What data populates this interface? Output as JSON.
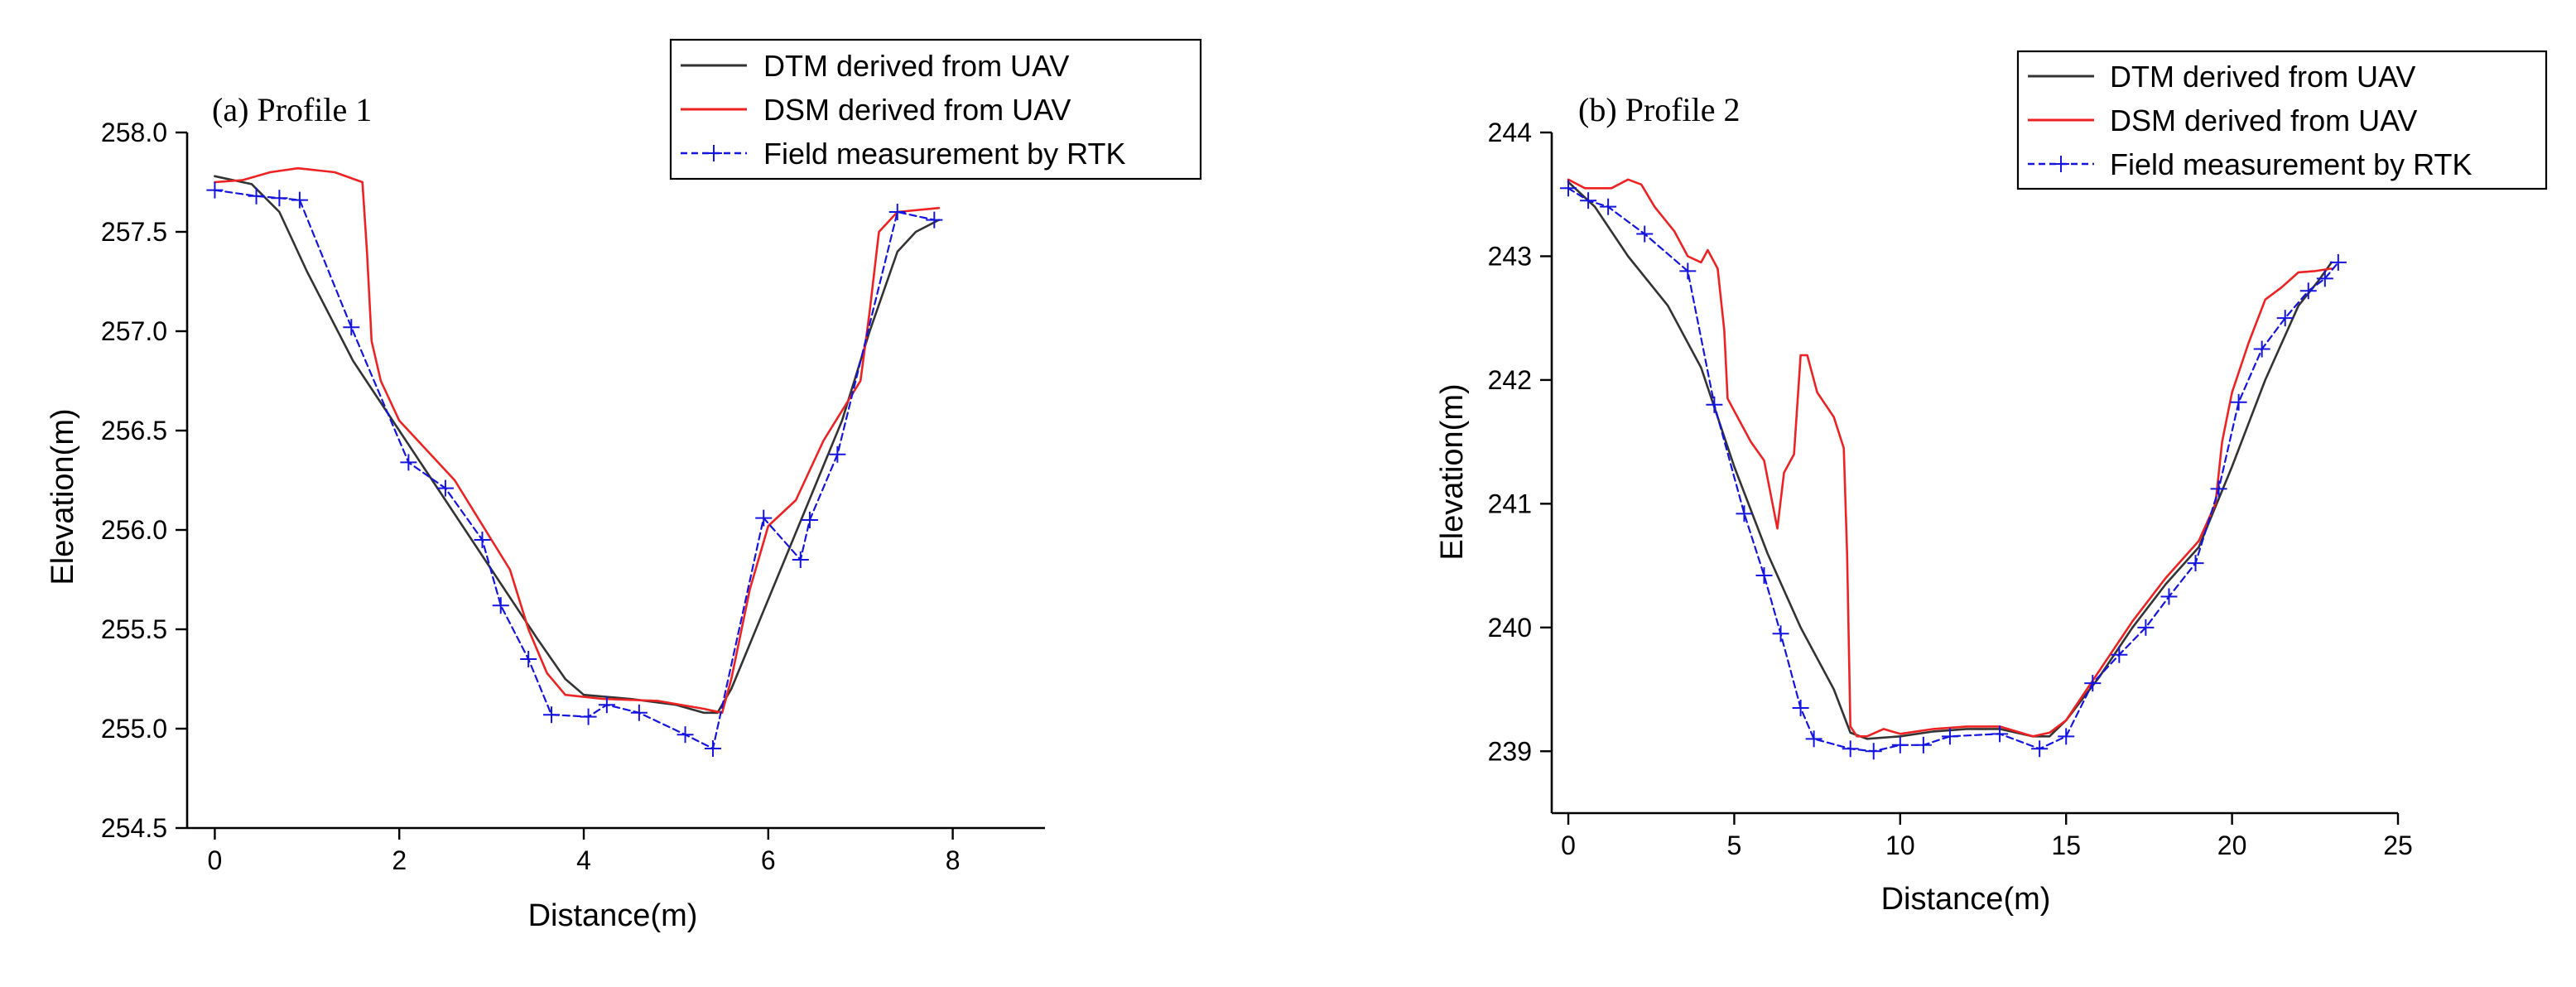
{
  "chart_data": [
    {
      "type": "line",
      "title": "(a) Profile 1",
      "xlabel": "Distance(m)",
      "ylabel": "Elevation(m)",
      "xlim": [
        -0.3,
        9
      ],
      "ylim": [
        254.5,
        258
      ],
      "xticks": [
        0,
        2,
        4,
        6,
        8
      ],
      "yticks": [
        254.5,
        255.0,
        255.5,
        256.0,
        256.5,
        257.0,
        257.5,
        258.0
      ],
      "xtick_labels": [
        "0",
        "2",
        "4",
        "6",
        "8"
      ],
      "ytick_labels": [
        "254.5",
        "255.0",
        "255.5",
        "256.0",
        "256.5",
        "257.0",
        "257.5",
        "258.0"
      ],
      "legend_position": "top-right",
      "series": [
        {
          "name": "DTM derived from UAV",
          "color": "#333333",
          "style": "solid",
          "marker": "none",
          "points": [
            [
              0,
              257.78
            ],
            [
              0.4,
              257.74
            ],
            [
              0.7,
              257.6
            ],
            [
              1.0,
              257.3
            ],
            [
              1.5,
              256.85
            ],
            [
              2.0,
              256.5
            ],
            [
              2.5,
              256.15
            ],
            [
              3.0,
              255.8
            ],
            [
              3.5,
              255.45
            ],
            [
              3.8,
              255.25
            ],
            [
              4.0,
              255.17
            ],
            [
              4.5,
              255.15
            ],
            [
              5.0,
              255.12
            ],
            [
              5.3,
              255.08
            ],
            [
              5.45,
              255.08
            ],
            [
              5.6,
              255.2
            ],
            [
              6.0,
              255.65
            ],
            [
              6.4,
              256.1
            ],
            [
              6.8,
              256.55
            ],
            [
              7.1,
              257.0
            ],
            [
              7.4,
              257.4
            ],
            [
              7.6,
              257.5
            ],
            [
              7.85,
              257.56
            ]
          ]
        },
        {
          "name": "DSM derived from UAV",
          "color": "#ee2222",
          "style": "solid",
          "marker": "none",
          "points": [
            [
              0,
              257.75
            ],
            [
              0.3,
              257.76
            ],
            [
              0.6,
              257.8
            ],
            [
              0.9,
              257.82
            ],
            [
              1.3,
              257.8
            ],
            [
              1.6,
              257.75
            ],
            [
              1.65,
              257.4
            ],
            [
              1.7,
              256.95
            ],
            [
              1.8,
              256.75
            ],
            [
              2.0,
              256.55
            ],
            [
              2.2,
              256.45
            ],
            [
              2.6,
              256.25
            ],
            [
              3.0,
              255.95
            ],
            [
              3.2,
              255.8
            ],
            [
              3.4,
              255.5
            ],
            [
              3.6,
              255.28
            ],
            [
              3.8,
              255.17
            ],
            [
              4.2,
              255.15
            ],
            [
              4.8,
              255.14
            ],
            [
              5.3,
              255.1
            ],
            [
              5.5,
              255.08
            ],
            [
              5.6,
              255.25
            ],
            [
              5.8,
              255.7
            ],
            [
              6.0,
              256.02
            ],
            [
              6.3,
              256.15
            ],
            [
              6.6,
              256.45
            ],
            [
              7.0,
              256.75
            ],
            [
              7.1,
              257.1
            ],
            [
              7.2,
              257.5
            ],
            [
              7.4,
              257.6
            ],
            [
              7.85,
              257.62
            ]
          ]
        },
        {
          "name": "Field measurement by RTK",
          "color": "#1414e0",
          "style": "dashed",
          "marker": "+",
          "points": [
            [
              0,
              257.71
            ],
            [
              0.45,
              257.68
            ],
            [
              0.7,
              257.67
            ],
            [
              0.92,
              257.66
            ],
            [
              1.48,
              257.02
            ],
            [
              2.1,
              256.34
            ],
            [
              2.5,
              256.21
            ],
            [
              2.9,
              255.95
            ],
            [
              3.1,
              255.62
            ],
            [
              3.4,
              255.35
            ],
            [
              3.65,
              255.07
            ],
            [
              4.05,
              255.06
            ],
            [
              4.25,
              255.12
            ],
            [
              4.6,
              255.08
            ],
            [
              5.1,
              254.97
            ],
            [
              5.4,
              254.9
            ],
            [
              5.95,
              256.06
            ],
            [
              6.35,
              255.85
            ],
            [
              6.45,
              256.05
            ],
            [
              6.75,
              256.38
            ],
            [
              7.4,
              257.6
            ],
            [
              7.8,
              257.56
            ]
          ]
        }
      ]
    },
    {
      "type": "line",
      "title": "(b) Profile 2",
      "xlabel": "Distance(m)",
      "ylabel": "Elevation(m)",
      "xlim": [
        -0.5,
        25
      ],
      "ylim": [
        238.5,
        244
      ],
      "xticks": [
        0,
        5,
        10,
        15,
        20,
        25
      ],
      "yticks": [
        239,
        240,
        241,
        242,
        243,
        244
      ],
      "xtick_labels": [
        "0",
        "5",
        "10",
        "15",
        "20",
        "25"
      ],
      "ytick_labels": [
        "239",
        "240",
        "241",
        "242",
        "243",
        "244"
      ],
      "legend_position": "top-right",
      "series": [
        {
          "name": "DTM derived from UAV",
          "color": "#333333",
          "style": "solid",
          "marker": "none",
          "points": [
            [
              0,
              243.6
            ],
            [
              0.8,
              243.4
            ],
            [
              1.8,
              243.0
            ],
            [
              3.0,
              242.6
            ],
            [
              4.0,
              242.1
            ],
            [
              5.0,
              241.3
            ],
            [
              6.0,
              240.6
            ],
            [
              7.0,
              240.0
            ],
            [
              8.0,
              239.5
            ],
            [
              8.5,
              239.15
            ],
            [
              9.0,
              239.1
            ],
            [
              10.0,
              239.12
            ],
            [
              11.0,
              239.16
            ],
            [
              12.0,
              239.18
            ],
            [
              13.0,
              239.18
            ],
            [
              14.0,
              239.12
            ],
            [
              14.5,
              239.12
            ],
            [
              15.0,
              239.25
            ],
            [
              16.0,
              239.6
            ],
            [
              17.0,
              240.0
            ],
            [
              18.0,
              240.35
            ],
            [
              19.0,
              240.65
            ],
            [
              20.0,
              241.3
            ],
            [
              21.0,
              242.0
            ],
            [
              22.0,
              242.6
            ],
            [
              22.6,
              242.8
            ],
            [
              23.0,
              242.95
            ]
          ]
        },
        {
          "name": "DSM derived from UAV",
          "color": "#ee2222",
          "style": "solid",
          "marker": "none",
          "points": [
            [
              0,
              243.62
            ],
            [
              0.5,
              243.55
            ],
            [
              1.3,
              243.55
            ],
            [
              1.8,
              243.62
            ],
            [
              2.2,
              243.58
            ],
            [
              2.6,
              243.4
            ],
            [
              3.2,
              243.2
            ],
            [
              3.6,
              243.0
            ],
            [
              4.0,
              242.95
            ],
            [
              4.2,
              243.05
            ],
            [
              4.5,
              242.9
            ],
            [
              4.7,
              242.4
            ],
            [
              4.8,
              241.85
            ],
            [
              5.0,
              241.75
            ],
            [
              5.5,
              241.5
            ],
            [
              5.9,
              241.35
            ],
            [
              6.3,
              240.8
            ],
            [
              6.5,
              241.25
            ],
            [
              6.8,
              241.4
            ],
            [
              7.0,
              242.2
            ],
            [
              7.2,
              242.2
            ],
            [
              7.5,
              241.9
            ],
            [
              8.0,
              241.7
            ],
            [
              8.3,
              241.45
            ],
            [
              8.4,
              240.6
            ],
            [
              8.5,
              239.2
            ],
            [
              8.7,
              239.12
            ],
            [
              9.0,
              239.12
            ],
            [
              9.5,
              239.18
            ],
            [
              10.0,
              239.14
            ],
            [
              11.0,
              239.18
            ],
            [
              12.0,
              239.2
            ],
            [
              13.0,
              239.2
            ],
            [
              14.0,
              239.12
            ],
            [
              14.5,
              239.15
            ],
            [
              15.0,
              239.25
            ],
            [
              16.0,
              239.65
            ],
            [
              17.0,
              240.05
            ],
            [
              18.0,
              240.4
            ],
            [
              19.0,
              240.7
            ],
            [
              19.5,
              241.0
            ],
            [
              19.7,
              241.5
            ],
            [
              20.0,
              241.9
            ],
            [
              20.5,
              242.3
            ],
            [
              21.0,
              242.65
            ],
            [
              21.5,
              242.75
            ],
            [
              22.0,
              242.87
            ],
            [
              22.5,
              242.88
            ],
            [
              23.0,
              242.9
            ]
          ]
        },
        {
          "name": "Field measurement by RTK",
          "color": "#1414e0",
          "style": "dashed",
          "marker": "+",
          "points": [
            [
              0,
              243.55
            ],
            [
              0.6,
              243.45
            ],
            [
              1.2,
              243.4
            ],
            [
              2.3,
              243.18
            ],
            [
              3.6,
              242.88
            ],
            [
              4.4,
              241.8
            ],
            [
              5.3,
              240.92
            ],
            [
              5.9,
              240.42
            ],
            [
              6.4,
              239.95
            ],
            [
              7.0,
              239.35
            ],
            [
              7.4,
              239.1
            ],
            [
              8.5,
              239.02
            ],
            [
              9.2,
              239.0
            ],
            [
              10.0,
              239.05
            ],
            [
              10.7,
              239.05
            ],
            [
              11.5,
              239.12
            ],
            [
              13.0,
              239.14
            ],
            [
              14.2,
              239.02
            ],
            [
              15.0,
              239.12
            ],
            [
              15.8,
              239.55
            ],
            [
              16.6,
              239.78
            ],
            [
              17.4,
              240.0
            ],
            [
              18.1,
              240.25
            ],
            [
              18.9,
              240.52
            ],
            [
              19.6,
              241.12
            ],
            [
              20.2,
              241.82
            ],
            [
              20.9,
              242.25
            ],
            [
              21.6,
              242.5
            ],
            [
              22.3,
              242.72
            ],
            [
              22.8,
              242.82
            ],
            [
              23.2,
              242.95
            ]
          ]
        }
      ]
    }
  ]
}
